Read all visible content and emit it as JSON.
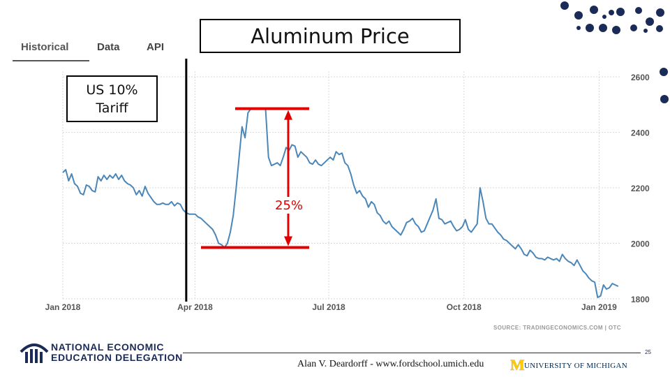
{
  "tabs": [
    {
      "label": "Historical"
    },
    {
      "label": "Data"
    },
    {
      "label": "API"
    }
  ],
  "slide_title": "Aluminum Price",
  "tariff_label": {
    "line1": "US 10%",
    "line2": "Tariff"
  },
  "change_label": "25%",
  "source": "SOURCE: TRADINGECONOMICS.COM | OTC",
  "footer": {
    "org_line1": "NATIONAL ECONOMIC",
    "org_line2": "EDUCATION DELEGATION",
    "author": "Alan V. Deardorff - www.fordschool.umich.edu",
    "university_mark": "M",
    "university": "UNIVERSITY OF MICHIGAN",
    "slide_number": "25"
  },
  "colors": {
    "line": "#4a86b8",
    "annotation": "#e00000",
    "grid": "#d9d9d9",
    "navy": "#1a2b57"
  },
  "chart_data": {
    "type": "line",
    "title": "Aluminum Price",
    "xlabel": "",
    "ylabel": "",
    "x_ticks": [
      {
        "label": "Jan 2018",
        "t": 0
      },
      {
        "label": "Apr 2018",
        "t": 90
      },
      {
        "label": "Jul 2018",
        "t": 181
      },
      {
        "label": "Oct 2018",
        "t": 273
      },
      {
        "label": "Jan 2019",
        "t": 365
      }
    ],
    "y_ticks": [
      1800,
      2000,
      2200,
      2400,
      2600
    ],
    "ylim": [
      1800,
      2620
    ],
    "xlim": [
      0,
      380
    ],
    "grid": true,
    "series": [
      {
        "name": "Aluminum",
        "points": [
          [
            0,
            2255
          ],
          [
            2,
            2265
          ],
          [
            4,
            2225
          ],
          [
            6,
            2250
          ],
          [
            8,
            2215
          ],
          [
            10,
            2205
          ],
          [
            12,
            2180
          ],
          [
            14,
            2175
          ],
          [
            16,
            2210
          ],
          [
            18,
            2205
          ],
          [
            20,
            2190
          ],
          [
            22,
            2185
          ],
          [
            24,
            2240
          ],
          [
            26,
            2225
          ],
          [
            28,
            2245
          ],
          [
            30,
            2230
          ],
          [
            32,
            2245
          ],
          [
            34,
            2235
          ],
          [
            36,
            2250
          ],
          [
            38,
            2230
          ],
          [
            40,
            2245
          ],
          [
            42,
            2225
          ],
          [
            44,
            2215
          ],
          [
            46,
            2210
          ],
          [
            48,
            2200
          ],
          [
            50,
            2175
          ],
          [
            52,
            2190
          ],
          [
            54,
            2170
          ],
          [
            56,
            2205
          ],
          [
            58,
            2180
          ],
          [
            60,
            2165
          ],
          [
            62,
            2150
          ],
          [
            64,
            2140
          ],
          [
            66,
            2140
          ],
          [
            68,
            2145
          ],
          [
            70,
            2140
          ],
          [
            72,
            2140
          ],
          [
            74,
            2150
          ],
          [
            76,
            2135
          ],
          [
            78,
            2145
          ],
          [
            80,
            2140
          ],
          [
            82,
            2120
          ],
          [
            84,
            2110
          ],
          [
            86,
            2105
          ],
          [
            88,
            2105
          ],
          [
            90,
            2105
          ],
          [
            92,
            2095
          ],
          [
            94,
            2090
          ],
          [
            96,
            2080
          ],
          [
            98,
            2070
          ],
          [
            100,
            2060
          ],
          [
            102,
            2050
          ],
          [
            104,
            2030
          ],
          [
            106,
            2000
          ],
          [
            108,
            1995
          ],
          [
            110,
            1985
          ],
          [
            112,
            2000
          ],
          [
            114,
            2040
          ],
          [
            116,
            2100
          ],
          [
            118,
            2200
          ],
          [
            120,
            2310
          ],
          [
            122,
            2420
          ],
          [
            124,
            2380
          ],
          [
            126,
            2470
          ],
          [
            128,
            2485
          ],
          [
            130,
            2485
          ],
          [
            132,
            2485
          ],
          [
            134,
            2485
          ],
          [
            136,
            2485
          ],
          [
            138,
            2485
          ],
          [
            140,
            2310
          ],
          [
            142,
            2280
          ],
          [
            144,
            2285
          ],
          [
            146,
            2290
          ],
          [
            148,
            2280
          ],
          [
            150,
            2310
          ],
          [
            152,
            2345
          ],
          [
            154,
            2335
          ],
          [
            156,
            2355
          ],
          [
            158,
            2350
          ],
          [
            160,
            2310
          ],
          [
            162,
            2330
          ],
          [
            164,
            2320
          ],
          [
            166,
            2310
          ],
          [
            168,
            2290
          ],
          [
            170,
            2285
          ],
          [
            172,
            2300
          ],
          [
            174,
            2285
          ],
          [
            176,
            2280
          ],
          [
            178,
            2290
          ],
          [
            180,
            2300
          ],
          [
            182,
            2310
          ],
          [
            184,
            2300
          ],
          [
            186,
            2330
          ],
          [
            188,
            2320
          ],
          [
            190,
            2325
          ],
          [
            192,
            2290
          ],
          [
            194,
            2280
          ],
          [
            196,
            2250
          ],
          [
            198,
            2210
          ],
          [
            200,
            2180
          ],
          [
            202,
            2190
          ],
          [
            204,
            2170
          ],
          [
            206,
            2160
          ],
          [
            208,
            2130
          ],
          [
            210,
            2150
          ],
          [
            212,
            2140
          ],
          [
            214,
            2110
          ],
          [
            216,
            2100
          ],
          [
            218,
            2080
          ],
          [
            220,
            2070
          ],
          [
            222,
            2080
          ],
          [
            224,
            2060
          ],
          [
            226,
            2050
          ],
          [
            228,
            2040
          ],
          [
            230,
            2030
          ],
          [
            232,
            2050
          ],
          [
            234,
            2075
          ],
          [
            236,
            2080
          ],
          [
            238,
            2090
          ],
          [
            240,
            2070
          ],
          [
            242,
            2060
          ],
          [
            244,
            2040
          ],
          [
            246,
            2045
          ],
          [
            248,
            2070
          ],
          [
            250,
            2095
          ],
          [
            252,
            2120
          ],
          [
            254,
            2160
          ],
          [
            256,
            2090
          ],
          [
            258,
            2085
          ],
          [
            260,
            2070
          ],
          [
            262,
            2075
          ],
          [
            264,
            2080
          ],
          [
            266,
            2060
          ],
          [
            268,
            2045
          ],
          [
            270,
            2050
          ],
          [
            272,
            2060
          ],
          [
            274,
            2085
          ],
          [
            276,
            2050
          ],
          [
            278,
            2040
          ],
          [
            280,
            2055
          ],
          [
            282,
            2070
          ],
          [
            284,
            2200
          ],
          [
            286,
            2150
          ],
          [
            288,
            2090
          ],
          [
            290,
            2070
          ],
          [
            292,
            2070
          ],
          [
            294,
            2055
          ],
          [
            296,
            2040
          ],
          [
            298,
            2030
          ],
          [
            300,
            2015
          ],
          [
            302,
            2010
          ],
          [
            304,
            2000
          ],
          [
            306,
            1990
          ],
          [
            308,
            1980
          ],
          [
            310,
            1995
          ],
          [
            312,
            1980
          ],
          [
            314,
            1960
          ],
          [
            316,
            1955
          ],
          [
            318,
            1975
          ],
          [
            320,
            1965
          ],
          [
            322,
            1950
          ],
          [
            324,
            1945
          ],
          [
            326,
            1945
          ],
          [
            328,
            1940
          ],
          [
            330,
            1950
          ],
          [
            332,
            1945
          ],
          [
            334,
            1940
          ],
          [
            336,
            1945
          ],
          [
            338,
            1935
          ],
          [
            340,
            1960
          ],
          [
            342,
            1945
          ],
          [
            344,
            1935
          ],
          [
            346,
            1930
          ],
          [
            348,
            1920
          ],
          [
            350,
            1940
          ],
          [
            352,
            1920
          ],
          [
            354,
            1900
          ],
          [
            356,
            1890
          ],
          [
            358,
            1875
          ],
          [
            360,
            1865
          ],
          [
            362,
            1860
          ],
          [
            364,
            1805
          ],
          [
            366,
            1810
          ],
          [
            368,
            1850
          ],
          [
            370,
            1835
          ],
          [
            372,
            1840
          ],
          [
            374,
            1855
          ],
          [
            376,
            1850
          ],
          [
            378,
            1845
          ]
        ]
      }
    ],
    "annotations": {
      "tariff_t": 84,
      "peak_value": 2485,
      "trough_value": 1985,
      "change": "25%"
    }
  }
}
